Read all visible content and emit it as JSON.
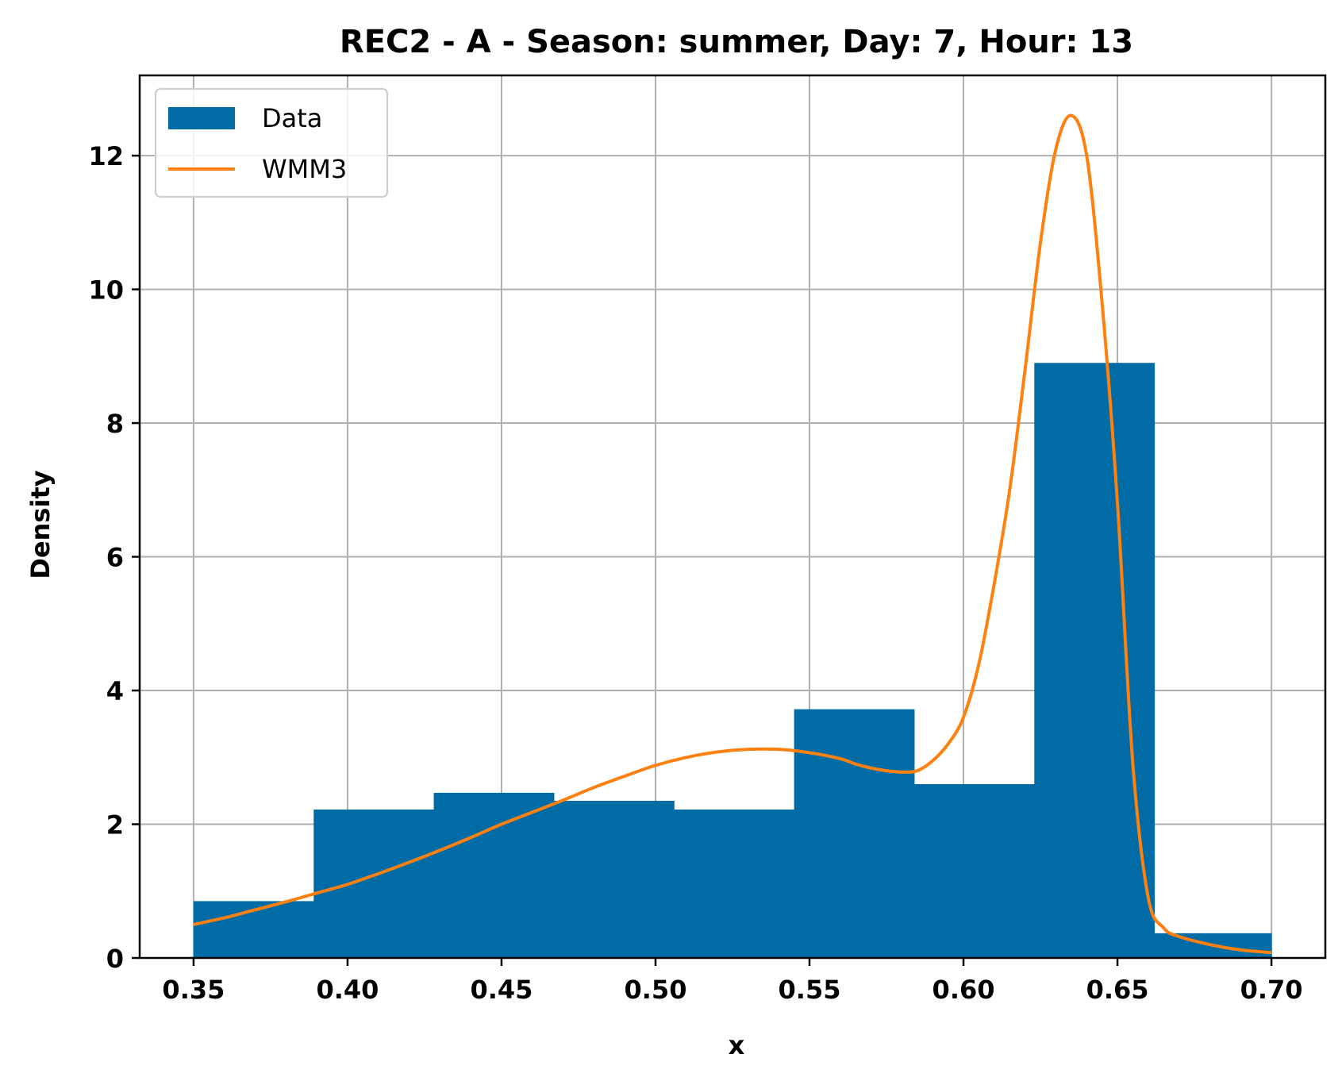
{
  "chart_data": {
    "type": "bar",
    "title": "REC2 - A - Season: summer, Day: 7, Hour: 13",
    "xlabel": "x",
    "ylabel": "Density",
    "xlim": [
      0.3325,
      0.7175
    ],
    "ylim": [
      0,
      13.2
    ],
    "xticks": [
      0.35,
      0.4,
      0.45,
      0.5,
      0.55,
      0.6,
      0.65,
      0.7
    ],
    "xtick_labels": [
      "0.35",
      "0.40",
      "0.45",
      "0.50",
      "0.55",
      "0.60",
      "0.65",
      "0.70"
    ],
    "yticks": [
      0,
      2,
      4,
      6,
      8,
      10,
      12
    ],
    "ytick_labels": [
      "0",
      "2",
      "4",
      "6",
      "8",
      "10",
      "12"
    ],
    "grid": true,
    "legend_position": "top-left",
    "histogram": {
      "name": "Data",
      "color": "#006ba4",
      "bin_edges": [
        0.35,
        0.389,
        0.428,
        0.467,
        0.506,
        0.545,
        0.584,
        0.623,
        0.662,
        0.7
      ],
      "values": [
        0.85,
        2.22,
        2.47,
        2.35,
        2.22,
        3.72,
        2.6,
        8.9,
        0.37
      ]
    },
    "curve": {
      "name": "WMM3",
      "color": "#ff800e",
      "x": [
        0.35,
        0.36,
        0.37,
        0.38,
        0.39,
        0.4,
        0.41,
        0.42,
        0.43,
        0.44,
        0.45,
        0.46,
        0.47,
        0.48,
        0.49,
        0.5,
        0.51,
        0.52,
        0.53,
        0.54,
        0.55,
        0.56,
        0.565,
        0.57,
        0.575,
        0.58,
        0.585,
        0.59,
        0.595,
        0.6,
        0.605,
        0.61,
        0.615,
        0.62,
        0.625,
        0.63,
        0.635,
        0.64,
        0.645,
        0.65,
        0.655,
        0.66,
        0.665,
        0.67,
        0.68,
        0.69,
        0.7
      ],
      "y": [
        0.5,
        0.6,
        0.72,
        0.84,
        0.97,
        1.1,
        1.26,
        1.43,
        1.61,
        1.8,
        2.0,
        2.18,
        2.36,
        2.55,
        2.72,
        2.88,
        3.0,
        3.08,
        3.12,
        3.12,
        3.07,
        2.98,
        2.9,
        2.84,
        2.8,
        2.78,
        2.8,
        2.95,
        3.2,
        3.6,
        4.4,
        5.6,
        7.0,
        8.8,
        10.7,
        12.1,
        12.6,
        12.0,
        9.8,
        6.8,
        2.9,
        0.9,
        0.45,
        0.32,
        0.2,
        0.12,
        0.08
      ]
    }
  }
}
